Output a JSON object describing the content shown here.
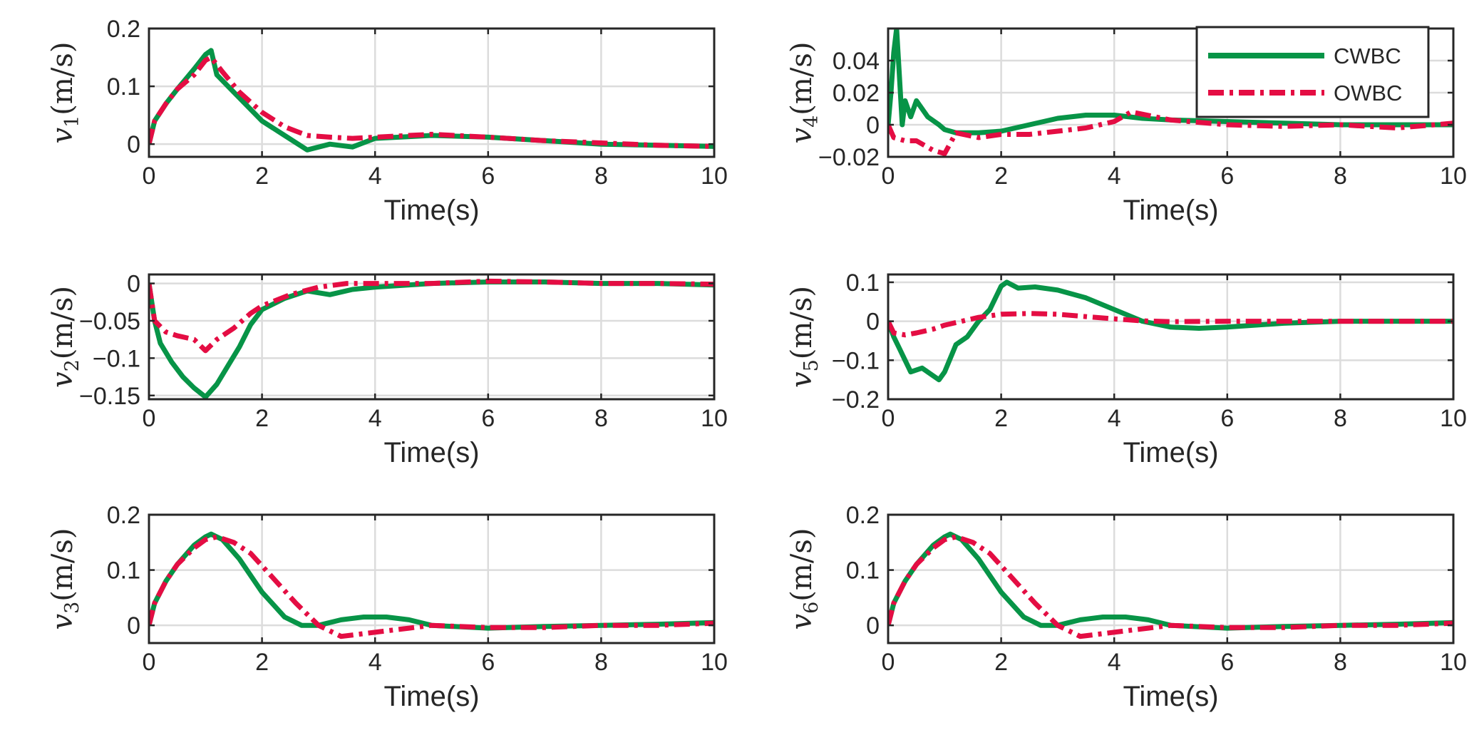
{
  "chart_data": {
    "type": "line",
    "layout": "3x2 grid of subplots",
    "series_styles": [
      {
        "name": "CWBC",
        "color": "#079447",
        "style": "solid"
      },
      {
        "name": "OWBC",
        "color": "#e40d43",
        "style": "dash-dot"
      }
    ],
    "legend": {
      "entries": [
        "CWBC",
        "OWBC"
      ],
      "location": "top-right of v4 panel"
    },
    "panels": [
      {
        "id": "v1",
        "var": "v",
        "sub": "1",
        "unit": "(m/s)",
        "xlabel": "Time(s)",
        "xlim": [
          0,
          10
        ],
        "xticks": [
          0,
          2,
          4,
          6,
          8,
          10
        ],
        "xtick_labels": [
          "0",
          "2",
          "4",
          "6",
          "8",
          "10"
        ],
        "ylim": [
          -0.022,
          0.2
        ],
        "yticks": [
          0,
          0.1,
          0.2
        ],
        "ytick_labels": [
          "0",
          "0.1",
          "0.2"
        ],
        "series": [
          {
            "name": "CWBC",
            "x": [
              0,
              0.1,
              0.3,
              0.5,
              0.8,
              1.0,
              1.1,
              1.2,
              1.5,
              2.0,
              2.4,
              2.8,
              3.2,
              3.6,
              4.0,
              5.0,
              6.0,
              7.0,
              8.0,
              9.0,
              10.0
            ],
            "y": [
              0,
              0.04,
              0.07,
              0.095,
              0.13,
              0.155,
              0.162,
              0.12,
              0.09,
              0.04,
              0.015,
              -0.01,
              0.0,
              -0.005,
              0.01,
              0.015,
              0.012,
              0.006,
              0.0,
              -0.002,
              -0.004
            ]
          },
          {
            "name": "OWBC",
            "x": [
              0,
              0.1,
              0.3,
              0.5,
              0.8,
              1.0,
              1.1,
              1.3,
              1.6,
              2.0,
              2.4,
              2.8,
              3.2,
              3.6,
              4.0,
              5.0,
              6.0,
              7.0,
              8.0,
              9.0,
              10.0
            ],
            "y": [
              0,
              0.04,
              0.07,
              0.095,
              0.12,
              0.145,
              0.15,
              0.125,
              0.09,
              0.055,
              0.03,
              0.015,
              0.012,
              0.01,
              0.012,
              0.017,
              0.012,
              0.006,
              0.002,
              -0.002,
              -0.004
            ]
          }
        ]
      },
      {
        "id": "v4",
        "var": "v",
        "sub": "4",
        "unit": "(m/s)",
        "xlabel": "Time(s)",
        "xlim": [
          0,
          10
        ],
        "xticks": [
          0,
          2,
          4,
          6,
          8,
          10
        ],
        "xtick_labels": [
          "0",
          "2",
          "4",
          "6",
          "8",
          "10"
        ],
        "ylim": [
          -0.02,
          0.06
        ],
        "yticks": [
          -0.02,
          0,
          0.02,
          0.04
        ],
        "ytick_labels": [
          "−0.02",
          "0",
          "0.02",
          "0.04"
        ],
        "series": [
          {
            "name": "CWBC",
            "x": [
              0,
              0.05,
              0.1,
              0.15,
              0.2,
              0.25,
              0.3,
              0.4,
              0.5,
              0.7,
              0.9,
              1.0,
              1.2,
              1.6,
              2.0,
              2.5,
              3.0,
              3.5,
              4.0,
              4.5,
              5.0,
              6.0,
              7.0,
              8.0,
              9.0,
              10.0
            ],
            "y": [
              0,
              0.02,
              0.045,
              0.06,
              0.03,
              0.0,
              0.015,
              0.005,
              0.015,
              0.005,
              0.0,
              -0.003,
              -0.005,
              -0.005,
              -0.004,
              0.0,
              0.004,
              0.006,
              0.006,
              0.004,
              0.003,
              0.002,
              0.001,
              0.0,
              0.0,
              0.0
            ]
          },
          {
            "name": "OWBC",
            "x": [
              0,
              0.1,
              0.3,
              0.5,
              0.8,
              1.0,
              1.2,
              1.6,
              2.0,
              2.5,
              3.0,
              3.5,
              4.0,
              4.3,
              5.0,
              6.0,
              7.0,
              8.0,
              9.0,
              10.0
            ],
            "y": [
              0,
              -0.008,
              -0.01,
              -0.01,
              -0.016,
              -0.018,
              -0.005,
              -0.008,
              -0.006,
              -0.006,
              -0.004,
              -0.002,
              0.002,
              0.008,
              0.003,
              0.0,
              -0.001,
              0.0,
              -0.002,
              0.001
            ]
          }
        ]
      },
      {
        "id": "v2",
        "var": "v",
        "sub": "2",
        "unit": "(m/s)",
        "xlabel": "Time(s)",
        "xlim": [
          0,
          10
        ],
        "xticks": [
          0,
          2,
          4,
          6,
          8,
          10
        ],
        "xtick_labels": [
          "0",
          "2",
          "4",
          "6",
          "8",
          "10"
        ],
        "ylim": [
          -0.155,
          0.012
        ],
        "yticks": [
          -0.15,
          -0.1,
          -0.05,
          0
        ],
        "ytick_labels": [
          "−0.15",
          "−0.1",
          "−0.05",
          "0"
        ],
        "series": [
          {
            "name": "CWBC",
            "x": [
              0,
              0.1,
              0.2,
              0.4,
              0.6,
              0.8,
              1.0,
              1.2,
              1.4,
              1.6,
              1.8,
              2.0,
              2.4,
              2.8,
              3.2,
              3.6,
              4.0,
              5.0,
              6.0,
              7.0,
              8.0,
              9.0,
              10.0
            ],
            "y": [
              0,
              -0.05,
              -0.08,
              -0.105,
              -0.125,
              -0.14,
              -0.152,
              -0.135,
              -0.11,
              -0.085,
              -0.055,
              -0.035,
              -0.02,
              -0.01,
              -0.015,
              -0.008,
              -0.005,
              0.0,
              0.002,
              0.002,
              0.0,
              0.0,
              -0.002
            ]
          },
          {
            "name": "OWBC",
            "x": [
              0,
              0.1,
              0.3,
              0.5,
              0.8,
              1.0,
              1.2,
              1.5,
              1.8,
              2.0,
              2.5,
              3.0,
              3.5,
              4.0,
              5.0,
              6.0,
              7.0,
              8.0,
              9.0,
              10.0
            ],
            "y": [
              0,
              -0.05,
              -0.065,
              -0.07,
              -0.075,
              -0.09,
              -0.075,
              -0.06,
              -0.04,
              -0.03,
              -0.015,
              -0.005,
              0.0,
              0.0,
              0.0,
              0.003,
              0.002,
              0.0,
              0.0,
              -0.001
            ]
          }
        ]
      },
      {
        "id": "v5",
        "var": "v",
        "sub": "5",
        "unit": "(m/s)",
        "xlabel": "Time(s)",
        "xlim": [
          0,
          10
        ],
        "xticks": [
          0,
          2,
          4,
          6,
          8,
          10
        ],
        "xtick_labels": [
          "0",
          "2",
          "4",
          "6",
          "8",
          "10"
        ],
        "ylim": [
          -0.2,
          0.12
        ],
        "yticks": [
          -0.2,
          -0.1,
          0,
          0.1
        ],
        "ytick_labels": [
          "−0.2",
          "−0.1",
          "0",
          "0.1"
        ],
        "series": [
          {
            "name": "CWBC",
            "x": [
              0,
              0.1,
              0.2,
              0.3,
              0.4,
              0.6,
              0.8,
              0.9,
              1.0,
              1.2,
              1.4,
              1.6,
              1.8,
              2.0,
              2.1,
              2.3,
              2.6,
              3.0,
              3.5,
              4.0,
              4.5,
              5.0,
              5.5,
              6.0,
              7.0,
              8.0,
              9.0,
              10.0
            ],
            "y": [
              0,
              -0.04,
              -0.07,
              -0.1,
              -0.13,
              -0.12,
              -0.14,
              -0.15,
              -0.13,
              -0.06,
              -0.04,
              0.0,
              0.03,
              0.09,
              0.1,
              0.085,
              0.088,
              0.08,
              0.06,
              0.03,
              0.0,
              -0.015,
              -0.018,
              -0.015,
              -0.005,
              0.0,
              0.0,
              0.0
            ]
          },
          {
            "name": "OWBC",
            "x": [
              0,
              0.1,
              0.3,
              0.5,
              0.8,
              1.0,
              1.3,
              1.6,
              2.0,
              2.5,
              3.0,
              3.5,
              4.0,
              4.5,
              5.0,
              6.0,
              7.0,
              8.0,
              9.0,
              10.0
            ],
            "y": [
              0,
              -0.03,
              -0.035,
              -0.03,
              -0.02,
              -0.01,
              0.0,
              0.01,
              0.018,
              0.02,
              0.018,
              0.012,
              0.006,
              0.001,
              -0.001,
              0.0,
              0.0,
              0.0,
              0.0,
              0.0
            ]
          }
        ]
      },
      {
        "id": "v3",
        "var": "v",
        "sub": "3",
        "unit": "(m/s)",
        "xlabel": "Time(s)",
        "xlim": [
          0,
          10
        ],
        "xticks": [
          0,
          2,
          4,
          6,
          8,
          10
        ],
        "xtick_labels": [
          "0",
          "2",
          "4",
          "6",
          "8",
          "10"
        ],
        "ylim": [
          -0.032,
          0.2
        ],
        "yticks": [
          0,
          0.1,
          0.2
        ],
        "ytick_labels": [
          "0",
          "0.1",
          "0.2"
        ],
        "series": [
          {
            "name": "CWBC",
            "x": [
              0,
              0.1,
              0.3,
              0.5,
              0.8,
              1.0,
              1.1,
              1.3,
              1.6,
              2.0,
              2.4,
              2.7,
              3.0,
              3.4,
              3.8,
              4.2,
              4.6,
              5.0,
              6.0,
              7.0,
              8.0,
              9.0,
              10.0
            ],
            "y": [
              0,
              0.04,
              0.08,
              0.11,
              0.145,
              0.16,
              0.165,
              0.155,
              0.12,
              0.06,
              0.015,
              0.0,
              0.0,
              0.01,
              0.015,
              0.015,
              0.01,
              0.0,
              -0.005,
              -0.002,
              0.0,
              0.002,
              0.005
            ]
          },
          {
            "name": "OWBC",
            "x": [
              0,
              0.1,
              0.3,
              0.5,
              0.8,
              1.0,
              1.2,
              1.5,
              1.8,
              2.2,
              2.6,
              3.0,
              3.4,
              3.8,
              4.2,
              4.6,
              5.0,
              6.0,
              7.0,
              8.0,
              9.0,
              10.0
            ],
            "y": [
              0,
              0.04,
              0.08,
              0.11,
              0.14,
              0.155,
              0.16,
              0.15,
              0.13,
              0.085,
              0.04,
              0.0,
              -0.02,
              -0.015,
              -0.01,
              -0.005,
              0.0,
              -0.004,
              -0.004,
              0.0,
              0.0,
              0.004
            ]
          }
        ]
      },
      {
        "id": "v6",
        "var": "v",
        "sub": "6",
        "unit": "(m/s)",
        "xlabel": "Time(s)",
        "xlim": [
          0,
          10
        ],
        "xticks": [
          0,
          2,
          4,
          6,
          8,
          10
        ],
        "xtick_labels": [
          "0",
          "2",
          "4",
          "6",
          "8",
          "10"
        ],
        "ylim": [
          -0.032,
          0.2
        ],
        "yticks": [
          0,
          0.1,
          0.2
        ],
        "ytick_labels": [
          "0",
          "0.1",
          "0.2"
        ],
        "series": [
          {
            "name": "CWBC",
            "x": [
              0,
              0.1,
              0.3,
              0.5,
              0.8,
              1.0,
              1.1,
              1.3,
              1.6,
              2.0,
              2.4,
              2.7,
              3.0,
              3.4,
              3.8,
              4.2,
              4.6,
              5.0,
              6.0,
              7.0,
              8.0,
              9.0,
              10.0
            ],
            "y": [
              0,
              0.04,
              0.08,
              0.11,
              0.145,
              0.16,
              0.165,
              0.155,
              0.12,
              0.06,
              0.015,
              0.0,
              0.0,
              0.01,
              0.015,
              0.015,
              0.01,
              0.0,
              -0.005,
              -0.002,
              0.0,
              0.002,
              0.005
            ]
          },
          {
            "name": "OWBC",
            "x": [
              0,
              0.1,
              0.3,
              0.5,
              0.8,
              1.0,
              1.2,
              1.5,
              1.8,
              2.2,
              2.6,
              3.0,
              3.4,
              3.8,
              4.2,
              4.6,
              5.0,
              6.0,
              7.0,
              8.0,
              9.0,
              10.0
            ],
            "y": [
              0,
              0.04,
              0.08,
              0.11,
              0.14,
              0.155,
              0.16,
              0.15,
              0.13,
              0.085,
              0.04,
              0.0,
              -0.02,
              -0.015,
              -0.01,
              -0.005,
              0.0,
              -0.004,
              -0.004,
              0.0,
              0.0,
              0.004
            ]
          }
        ]
      }
    ]
  }
}
